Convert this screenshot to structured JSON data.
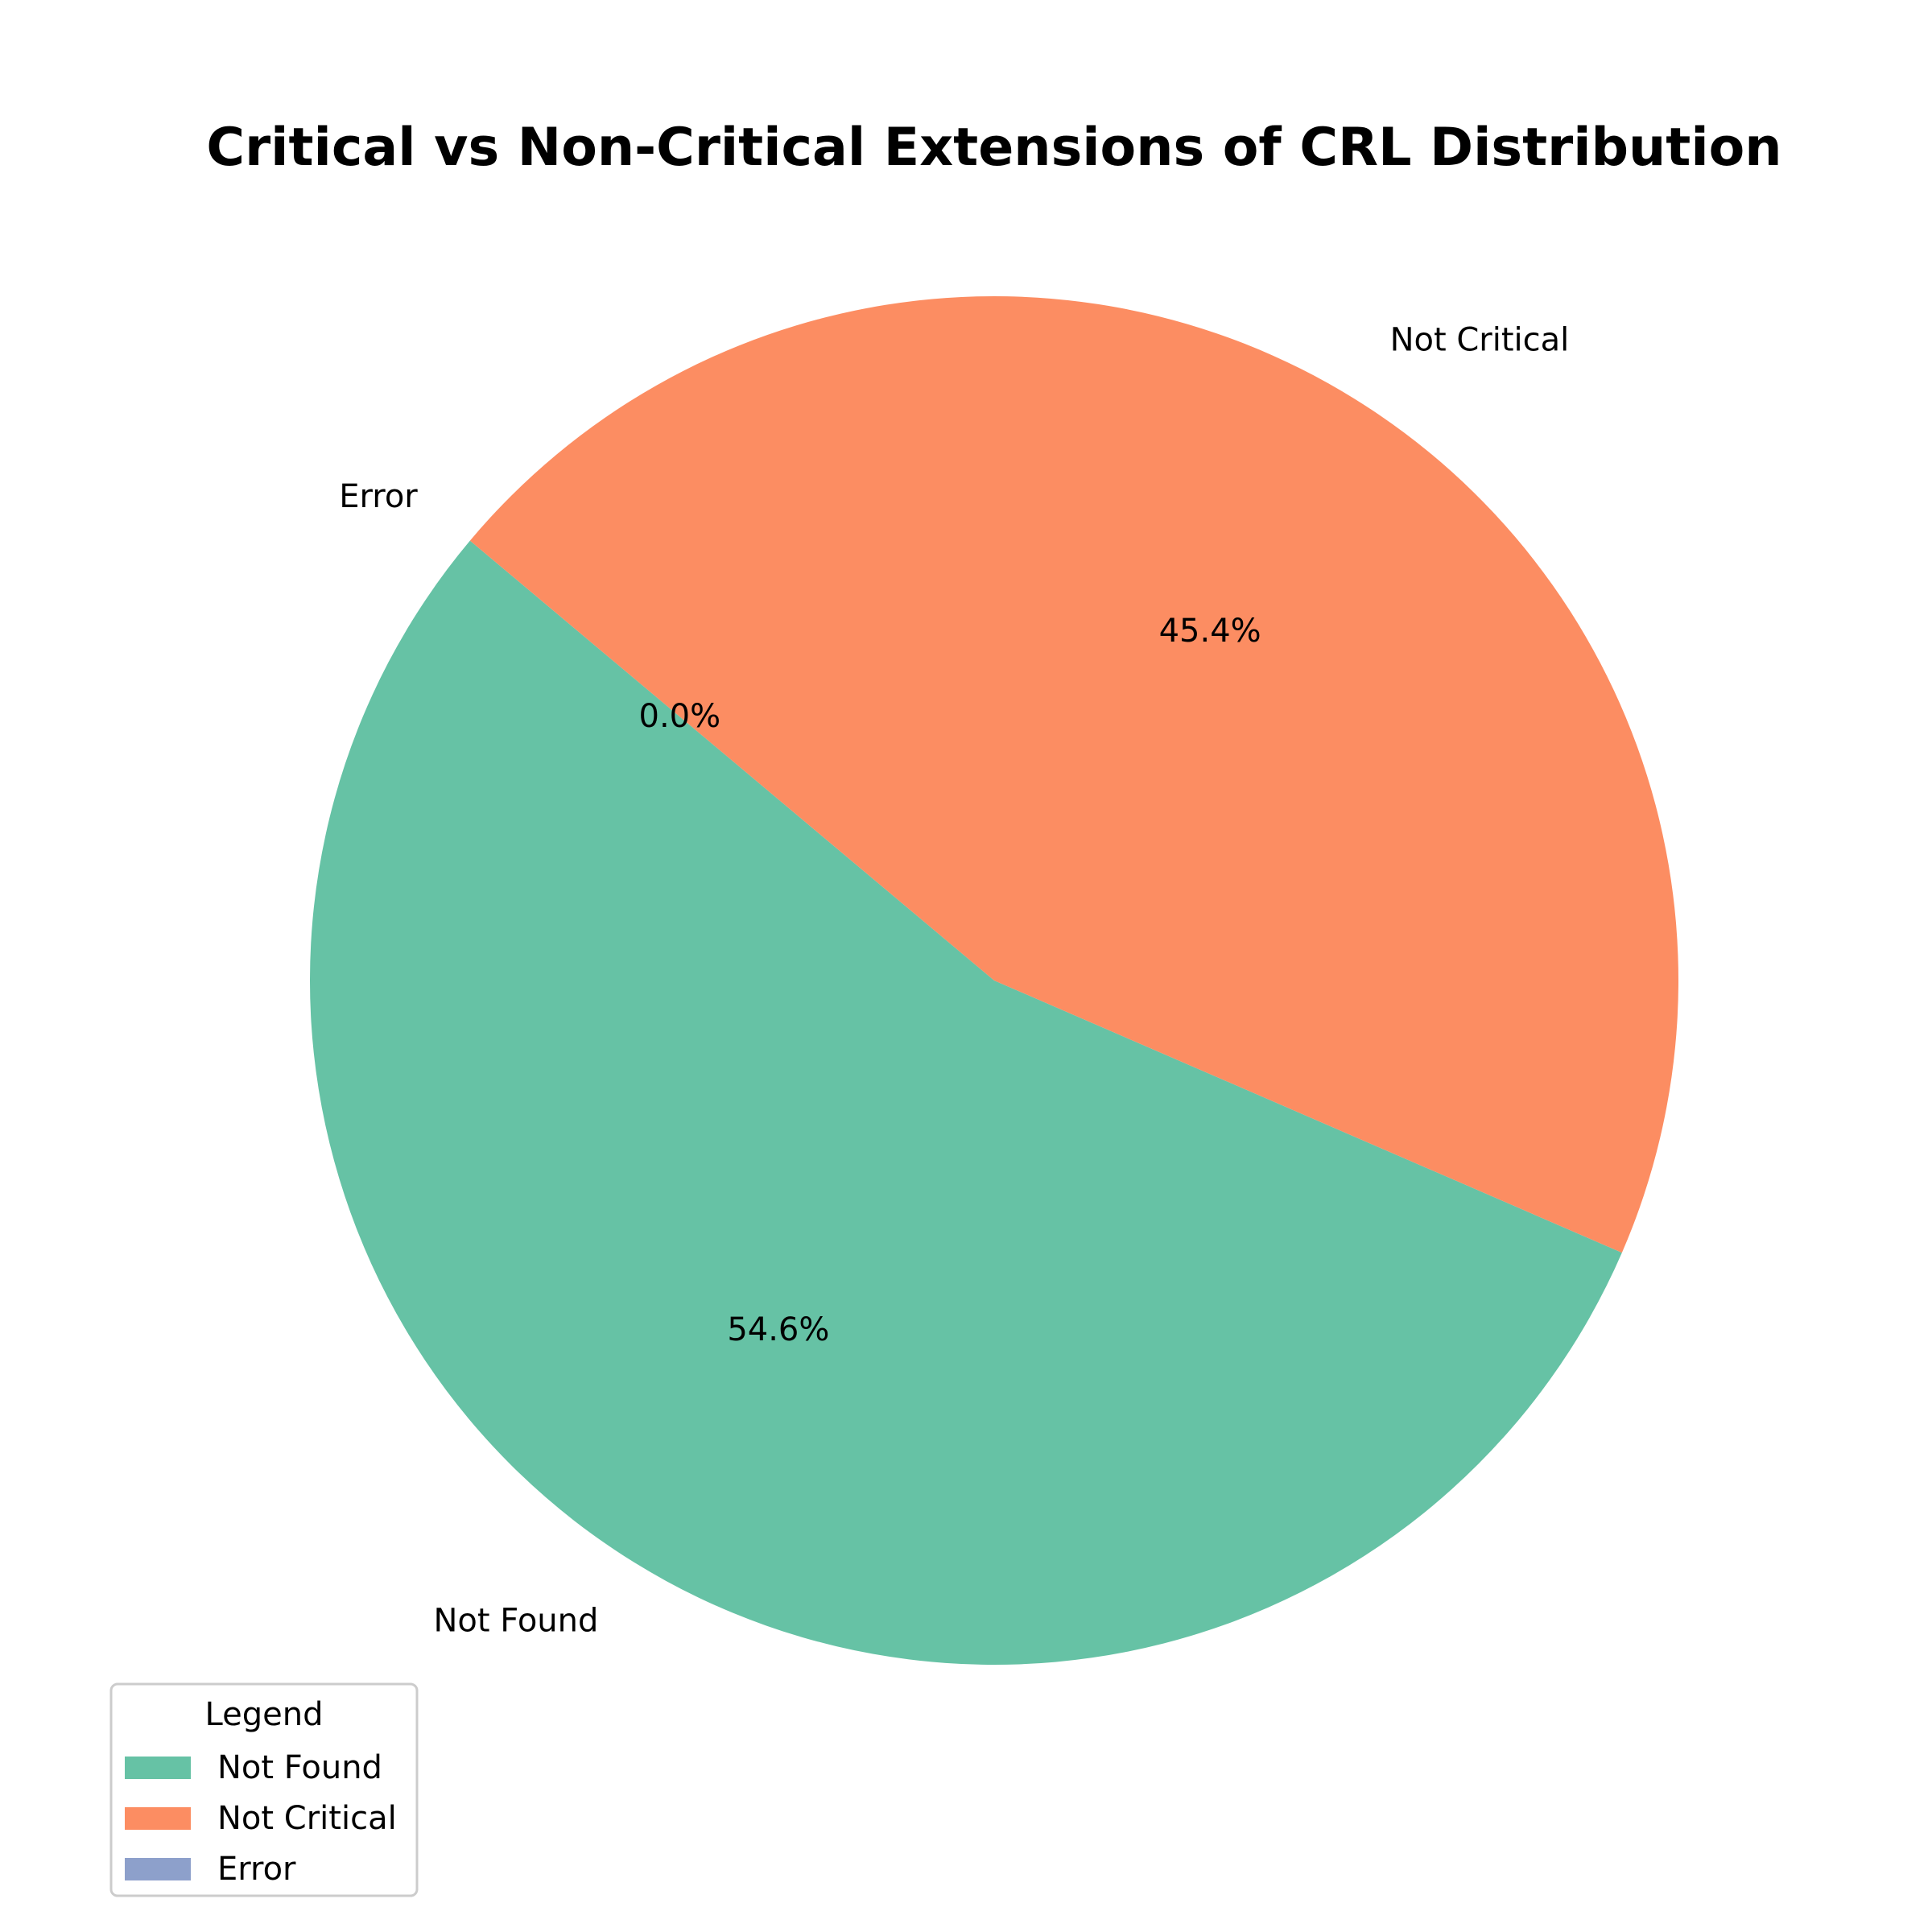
{
  "chart_data": {
    "type": "pie",
    "title": "Critical vs Non-Critical Extensions of CRL Distribution",
    "labels": [
      "Not Found",
      "Not Critical",
      "Error"
    ],
    "values": [
      54.6,
      45.4,
      0.0
    ],
    "percent_labels": [
      "54.6%",
      "45.4%",
      "0.0%"
    ],
    "colors": [
      "#66c2a5",
      "#fc8d62",
      "#8da0cb"
    ],
    "start_angle_deg": 140,
    "direction": "counterclockwise",
    "legend": {
      "title": "Legend",
      "placement": "lower-left",
      "entries": [
        "Not Found",
        "Not Critical",
        "Error"
      ]
    }
  }
}
